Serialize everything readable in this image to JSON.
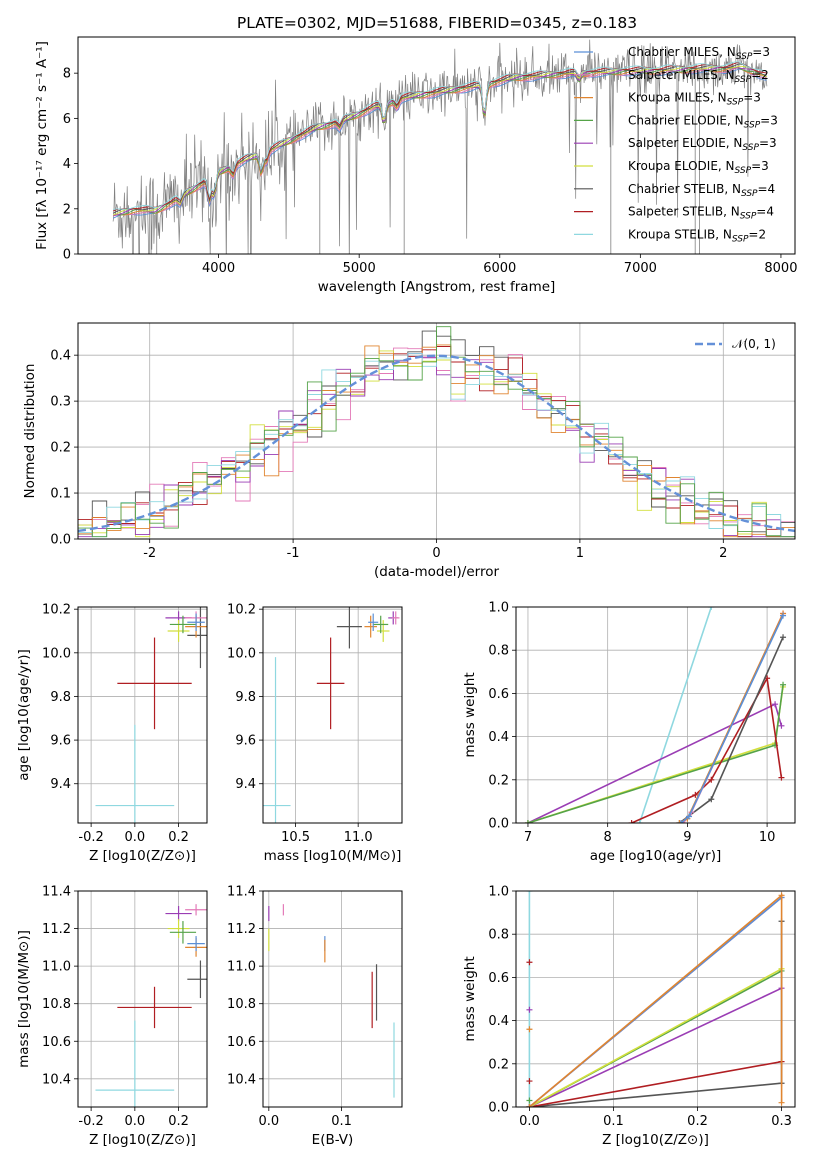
{
  "figure": {
    "title": "PLATE=0302, MJD=51688, FIBERID=0345, z=0.183"
  },
  "palette": {
    "c_chab_miles": "#5b8fd6",
    "c_salp_miles": "#e37ab8",
    "c_krou_miles": "#e08530",
    "c_chab_elodie": "#55a348",
    "c_salp_elodie": "#9a3db4",
    "c_krou_elodie": "#d2df3d",
    "c_chab_stelib": "#555555",
    "c_salp_stelib": "#b01e22",
    "c_krou_stelib": "#8fd8e0",
    "c_data": "#808080",
    "c_normal": "#6490d8"
  },
  "chart_data": [
    {
      "id": "spectrum",
      "type": "line",
      "title": "PLATE=0302, MJD=51688, FIBERID=0345, z=0.183",
      "xlabel": "wavelength [Angstrom, rest frame]",
      "ylabel": "Flux [fλ 10⁻¹⁷ erg cm⁻² s⁻¹ A⁻¹]",
      "xlim": [
        3000,
        8100
      ],
      "ylim": [
        0,
        9.6
      ],
      "xticks": [
        4000,
        5000,
        6000,
        7000,
        8000
      ],
      "yticks": [
        0,
        2,
        4,
        6,
        8
      ],
      "legend_position": "upper right",
      "legend": [
        {
          "label": "Chabrier MILES, N_SSP=3",
          "color_key": "c_chab_miles"
        },
        {
          "label": "Salpeter MILES, N_SSP=2",
          "color_key": "c_salp_miles"
        },
        {
          "label": "Kroupa MILES, N_SSP=3",
          "color_key": "c_krou_miles"
        },
        {
          "label": "Chabrier ELODIE, N_SSP=3",
          "color_key": "c_chab_elodie"
        },
        {
          "label": "Salpeter ELODIE, N_SSP=3",
          "color_key": "c_salp_elodie"
        },
        {
          "label": "Kroupa ELODIE, N_SSP=3",
          "color_key": "c_krou_elodie"
        },
        {
          "label": "Chabrier STELIB, N_SSP=4",
          "color_key": "c_chab_stelib"
        },
        {
          "label": "Salpeter STELIB, N_SSP=4",
          "color_key": "c_salp_stelib"
        },
        {
          "label": "Kroupa STELIB, N_SSP=2",
          "color_key": "c_krou_stelib"
        }
      ],
      "model_continuum": {
        "x": [
          3250,
          3400,
          3550,
          3700,
          3850,
          4000,
          4100,
          4200,
          4300,
          4400,
          4500,
          4600,
          4700,
          4800,
          4900,
          5000,
          5100,
          5200,
          5300,
          5400,
          5500,
          5600,
          5700,
          5800,
          5900,
          6000,
          6100,
          6200,
          6300,
          6400,
          6500,
          6600,
          6700,
          6800,
          6900,
          7000,
          7100,
          7200,
          7300,
          7400,
          7500,
          7600,
          7700,
          7800,
          7900
        ],
        "y": [
          1.75,
          1.95,
          1.9,
          2.4,
          3.0,
          3.6,
          3.9,
          4.2,
          4.4,
          4.7,
          5.0,
          5.3,
          5.6,
          5.75,
          5.95,
          6.2,
          6.5,
          6.65,
          6.9,
          7.0,
          7.1,
          7.2,
          7.3,
          7.4,
          7.5,
          7.65,
          7.8,
          7.85,
          7.9,
          7.95,
          8.0,
          8.0,
          8.05,
          8.05,
          8.1,
          8.1,
          8.1,
          8.15,
          8.15,
          8.2,
          8.2,
          8.2,
          8.3,
          8.1,
          7.85
        ]
      }
    },
    {
      "id": "residuals",
      "type": "histogram",
      "xlabel": "(data-model)/error",
      "ylabel": "Normed distribution",
      "xlim": [
        -2.5,
        2.5
      ],
      "ylim": [
        0,
        0.47
      ],
      "xticks": [
        -2,
        -1,
        0,
        1,
        2
      ],
      "yticks": [
        0.0,
        0.1,
        0.2,
        0.3,
        0.4
      ],
      "legend": [
        {
          "label": "𝒩(0, 1)",
          "color_key": "c_normal"
        }
      ],
      "bin_width": 0.1
    },
    {
      "id": "age_vs_Z",
      "type": "errorbar",
      "xlabel": "Z [log10(Z/Z⊙)]",
      "ylabel": "age  [log10(age/yr)]",
      "xlim": [
        -0.26,
        0.33
      ],
      "ylim": [
        9.22,
        10.21
      ],
      "xticks": [
        -0.2,
        0.0,
        0.2
      ],
      "yticks": [
        9.4,
        9.6,
        9.8,
        10.0,
        10.2
      ],
      "points": [
        {
          "color_key": "c_salp_stelib",
          "x": 0.09,
          "xerr": 0.17,
          "y": 9.86,
          "yerr": 0.21
        },
        {
          "color_key": "c_krou_stelib",
          "x": 0.0,
          "xerr": 0.18,
          "y": 9.3,
          "yerr": 0.37
        },
        {
          "color_key": "c_chab_stelib",
          "x": 0.3,
          "xerr": 0.06,
          "y": 10.08,
          "yerr": 0.15
        },
        {
          "color_key": "c_salp_elodie",
          "x": 0.2,
          "xerr": 0.06,
          "y": 10.16,
          "yerr": 0.03
        },
        {
          "color_key": "c_krou_elodie",
          "x": 0.2,
          "xerr": 0.05,
          "y": 10.1,
          "yerr": 0.05
        },
        {
          "color_key": "c_chab_elodie",
          "x": 0.22,
          "xerr": 0.06,
          "y": 10.13,
          "yerr": 0.04
        },
        {
          "color_key": "c_salp_miles",
          "x": 0.28,
          "xerr": 0.05,
          "y": 10.16,
          "yerr": 0.03
        },
        {
          "color_key": "c_krou_miles",
          "x": 0.28,
          "xerr": 0.05,
          "y": 10.12,
          "yerr": 0.05
        },
        {
          "color_key": "c_chab_miles",
          "x": 0.28,
          "xerr": 0.04,
          "y": 10.14,
          "yerr": 0.04
        }
      ]
    },
    {
      "id": "age_vs_mass",
      "type": "errorbar",
      "xlabel": "mass [log10(M/M⊙)]",
      "ylabel": "",
      "xlim": [
        10.24,
        11.35
      ],
      "ylim": [
        9.22,
        10.21
      ],
      "xticks": [
        10.5,
        11.0
      ],
      "yticks": [
        9.4,
        9.6,
        9.8,
        10.0,
        10.2
      ],
      "points": [
        {
          "color_key": "c_salp_stelib",
          "x": 10.78,
          "xerr": 0.11,
          "y": 9.86,
          "yerr": 0.21
        },
        {
          "color_key": "c_krou_stelib",
          "x": 10.34,
          "xerr": 0.12,
          "y": 9.3,
          "yerr": 0.68
        },
        {
          "color_key": "c_chab_stelib",
          "x": 10.93,
          "xerr": 0.1,
          "y": 10.12,
          "yerr": 0.1
        },
        {
          "color_key": "c_salp_elodie",
          "x": 11.28,
          "xerr": 0.04,
          "y": 10.16,
          "yerr": 0.03
        },
        {
          "color_key": "c_krou_elodie",
          "x": 11.2,
          "xerr": 0.05,
          "y": 10.1,
          "yerr": 0.05
        },
        {
          "color_key": "c_chab_elodie",
          "x": 11.18,
          "xerr": 0.06,
          "y": 10.13,
          "yerr": 0.04
        },
        {
          "color_key": "c_salp_miles",
          "x": 11.3,
          "xerr": 0.03,
          "y": 10.16,
          "yerr": 0.03
        },
        {
          "color_key": "c_krou_miles",
          "x": 11.1,
          "xerr": 0.05,
          "y": 10.12,
          "yerr": 0.05
        },
        {
          "color_key": "c_chab_miles",
          "x": 11.12,
          "xerr": 0.04,
          "y": 10.14,
          "yerr": 0.04
        }
      ]
    },
    {
      "id": "massweight_vs_age",
      "type": "line",
      "xlabel": "age  [log10(age/yr)]",
      "ylabel": "mass weight",
      "xlim": [
        6.85,
        10.35
      ],
      "ylim": [
        0,
        1.0
      ],
      "xticks": [
        7,
        8,
        9,
        10
      ],
      "yticks": [
        0.0,
        0.2,
        0.4,
        0.6,
        0.8,
        1.0
      ],
      "series": [
        {
          "color_key": "c_krou_stelib",
          "x": [
            8.4,
            9.3
          ],
          "y": [
            0.0,
            1.0
          ]
        },
        {
          "color_key": "c_salp_elodie",
          "x": [
            7.0,
            10.1,
            10.18
          ],
          "y": [
            0.0,
            0.55,
            0.45
          ]
        },
        {
          "color_key": "c_krou_elodie",
          "x": [
            7.0,
            10.1,
            10.2
          ],
          "y": [
            0.0,
            0.37,
            0.63
          ]
        },
        {
          "color_key": "c_chab_elodie",
          "x": [
            7.0,
            10.1,
            10.2
          ],
          "y": [
            0.0,
            0.36,
            0.64
          ]
        },
        {
          "color_key": "c_salp_stelib",
          "x": [
            8.3,
            9.1,
            9.3,
            10.0,
            10.18
          ],
          "y": [
            0.0,
            0.13,
            0.2,
            0.67,
            0.21
          ]
        },
        {
          "color_key": "c_chab_stelib",
          "x": [
            8.9,
            9.3,
            10.2
          ],
          "y": [
            0.0,
            0.11,
            0.86
          ]
        },
        {
          "color_key": "c_salp_miles",
          "x": [
            8.95,
            9.05,
            10.2
          ],
          "y": [
            0.0,
            0.05,
            0.97
          ]
        },
        {
          "color_key": "c_krou_miles",
          "x": [
            8.9,
            9.0,
            10.2
          ],
          "y": [
            0.0,
            0.02,
            0.97
          ]
        },
        {
          "color_key": "c_chab_miles",
          "x": [
            8.92,
            9.02,
            10.2
          ],
          "y": [
            0.0,
            0.03,
            0.96
          ]
        }
      ]
    },
    {
      "id": "mass_vs_Z",
      "type": "errorbar",
      "xlabel": "Z [log10(Z/Z⊙)]",
      "ylabel": "mass [log10(M/M⊙)]",
      "xlim": [
        -0.26,
        0.33
      ],
      "ylim": [
        10.25,
        11.4
      ],
      "xticks": [
        -0.2,
        0.0,
        0.2
      ],
      "yticks": [
        10.4,
        10.6,
        10.8,
        11.0,
        11.2,
        11.4
      ],
      "points": [
        {
          "color_key": "c_salp_stelib",
          "x": 0.09,
          "xerr": 0.17,
          "y": 10.78,
          "yerr": 0.11
        },
        {
          "color_key": "c_krou_stelib",
          "x": 0.0,
          "xerr": 0.18,
          "y": 10.34,
          "yerr": 0.37
        },
        {
          "color_key": "c_chab_stelib",
          "x": 0.3,
          "xerr": 0.06,
          "y": 10.93,
          "yerr": 0.1
        },
        {
          "color_key": "c_salp_elodie",
          "x": 0.2,
          "xerr": 0.06,
          "y": 11.28,
          "yerr": 0.04
        },
        {
          "color_key": "c_krou_elodie",
          "x": 0.2,
          "xerr": 0.05,
          "y": 11.2,
          "yerr": 0.05
        },
        {
          "color_key": "c_chab_elodie",
          "x": 0.22,
          "xerr": 0.06,
          "y": 11.18,
          "yerr": 0.06
        },
        {
          "color_key": "c_salp_miles",
          "x": 0.28,
          "xerr": 0.05,
          "y": 11.3,
          "yerr": 0.03
        },
        {
          "color_key": "c_krou_miles",
          "x": 0.28,
          "xerr": 0.05,
          "y": 11.1,
          "yerr": 0.05
        },
        {
          "color_key": "c_chab_miles",
          "x": 0.28,
          "xerr": 0.04,
          "y": 11.12,
          "yerr": 0.04
        }
      ]
    },
    {
      "id": "mass_vs_ebv",
      "type": "errorbar",
      "xlabel": "E(B-V)",
      "ylabel": "",
      "xlim": [
        -0.008,
        0.183
      ],
      "ylim": [
        10.25,
        11.4
      ],
      "xticks": [
        0.0,
        0.1
      ],
      "yticks": [
        10.4,
        10.6,
        10.8,
        11.0,
        11.2,
        11.4
      ],
      "points": [
        {
          "color_key": "c_salp_elodie",
          "x": 0.0,
          "xerr": 0.0,
          "y": 11.28,
          "yerr": 0.04
        },
        {
          "color_key": "c_krou_elodie",
          "x": 0.0,
          "xerr": 0.0,
          "y": 11.14,
          "yerr": 0.06
        },
        {
          "color_key": "c_salp_miles",
          "x": 0.02,
          "xerr": 0.0,
          "y": 11.3,
          "yerr": 0.03
        },
        {
          "color_key": "c_chab_miles",
          "x": 0.077,
          "xerr": 0.0,
          "y": 11.12,
          "yerr": 0.04
        },
        {
          "color_key": "c_krou_miles",
          "x": 0.077,
          "xerr": 0.0,
          "y": 11.08,
          "yerr": 0.06
        },
        {
          "color_key": "c_salp_stelib",
          "x": 0.142,
          "xerr": 0.0,
          "y": 10.82,
          "yerr": 0.15
        },
        {
          "color_key": "c_chab_stelib",
          "x": 0.148,
          "xerr": 0.0,
          "y": 10.86,
          "yerr": 0.15
        },
        {
          "color_key": "c_krou_stelib",
          "x": 0.172,
          "xerr": 0.0,
          "y": 10.5,
          "yerr": 0.2
        }
      ]
    },
    {
      "id": "massweight_vs_Z",
      "type": "line",
      "xlabel": "Z [log10(Z/Z⊙)]",
      "ylabel": "mass weight",
      "xlim": [
        -0.016,
        0.316
      ],
      "ylim": [
        0,
        1.0
      ],
      "xticks": [
        0.0,
        0.1,
        0.2,
        0.3
      ],
      "yticks": [
        0.0,
        0.2,
        0.4,
        0.6,
        0.8,
        1.0
      ],
      "series": [
        {
          "color_key": "c_krou_stelib",
          "x": [
            0.0,
            0.0
          ],
          "y": [
            0.0,
            1.0
          ]
        },
        {
          "color_key": "c_chab_stelib",
          "x": [
            0.0,
            0.3,
            0.3
          ],
          "y": [
            0.0,
            0.11,
            0.86
          ]
        },
        {
          "color_key": "c_salp_stelib",
          "x": [
            0.0,
            0.3
          ],
          "y": [
            0.0,
            0.21
          ]
        },
        {
          "color_key": "c_salp_elodie",
          "x": [
            0.0,
            0.3
          ],
          "y": [
            0.0,
            0.55
          ]
        },
        {
          "color_key": "c_chab_elodie",
          "x": [
            0.0,
            0.3
          ],
          "y": [
            0.0,
            0.63
          ]
        },
        {
          "color_key": "c_krou_elodie",
          "x": [
            0.0,
            0.3
          ],
          "y": [
            0.0,
            0.64
          ]
        },
        {
          "color_key": "c_salp_miles",
          "x": [
            0.0,
            0.3
          ],
          "y": [
            0.0,
            0.97
          ]
        },
        {
          "color_key": "c_chab_miles",
          "x": [
            0.0,
            0.3
          ],
          "y": [
            0.0,
            0.97
          ]
        },
        {
          "color_key": "c_krou_miles",
          "x": [
            0.0,
            0.3,
            0.3
          ],
          "y": [
            0.0,
            0.98,
            0.02
          ]
        }
      ],
      "markers_x0": [
        {
          "color_key": "c_salp_stelib",
          "y": 0.67
        },
        {
          "color_key": "c_salp_elodie",
          "y": 0.45
        },
        {
          "color_key": "c_krou_miles",
          "y": 0.36
        },
        {
          "color_key": "c_salp_stelib",
          "y": 0.12
        },
        {
          "color_key": "c_chab_elodie",
          "y": 0.03
        }
      ]
    }
  ]
}
